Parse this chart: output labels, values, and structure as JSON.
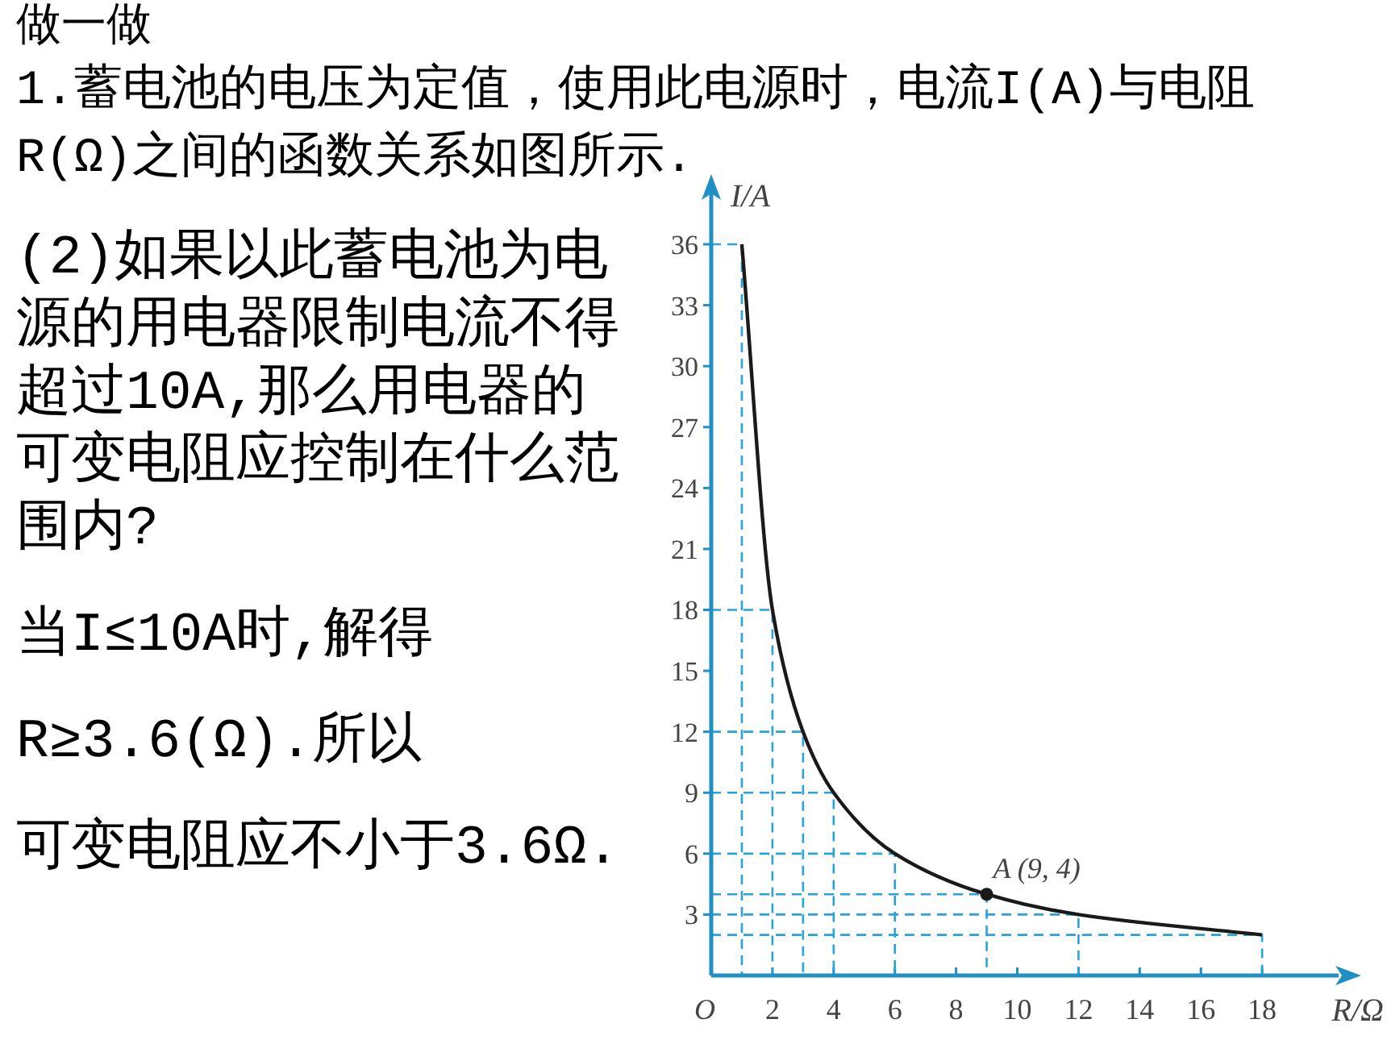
{
  "chart_data": {
    "type": "line",
    "title": "做一做",
    "subtitle": "1.蓄电池的电压为定值，使用此电源时，电流I(A)与电阻R(Ω)之间的函数关系如图所示.",
    "xlabel": "R/Ω",
    "ylabel": "I/A",
    "xlim": [
      0,
      20.5
    ],
    "ylim": [
      0,
      38.5
    ],
    "xticks": [
      {
        "value": 0,
        "label": "O"
      },
      2,
      4,
      6,
      8,
      10,
      12,
      14,
      16,
      18
    ],
    "yticks": [
      3,
      6,
      9,
      12,
      15,
      18,
      21,
      24,
      27,
      30,
      33,
      36
    ],
    "annotations": [
      {
        "text": "A (9, 4)",
        "x": 9,
        "y": 4
      },
      "(2)如果以此蓄电池为电源的用电器限制电流不得超过10A,那么用电器的可变电阻应控制在什么范围内?",
      "当I≤10A时,解得",
      "R≥3.6(Ω).所以",
      "可变电阻应不小于3.6Ω."
    ],
    "series": [
      {
        "color": "#1a1a1a",
        "marker": "none",
        "line_style": "solid",
        "x": [
          1,
          2,
          3,
          4,
          6,
          9,
          12,
          18
        ],
        "values": [
          36,
          18,
          12,
          9,
          6,
          4,
          3,
          2
        ]
      },
      {
        "type": "line",
        "color": "#29a3dc",
        "line_style": "dashed",
        "x": [
          0,
          1,
          1
        ],
        "values": [
          36,
          36,
          0
        ]
      },
      {
        "type": "line",
        "color": "#29a3dc",
        "line_style": "dashed",
        "x": [
          0,
          2,
          2
        ],
        "values": [
          18,
          18,
          0
        ]
      },
      {
        "type": "line",
        "color": "#29a3dc",
        "line_style": "dashed",
        "x": [
          0,
          3,
          3
        ],
        "values": [
          12,
          12,
          0
        ]
      },
      {
        "type": "line",
        "color": "#29a3dc",
        "line_style": "dashed",
        "x": [
          0,
          4,
          4
        ],
        "values": [
          9,
          9,
          0
        ]
      },
      {
        "type": "line",
        "color": "#29a3dc",
        "line_style": "dashed",
        "x": [
          0,
          6,
          6
        ],
        "values": [
          6,
          6,
          0
        ]
      },
      {
        "type": "line",
        "color": "#29a3dc",
        "line_style": "dashed",
        "x": [
          0,
          9,
          9
        ],
        "values": [
          4,
          4,
          0
        ]
      },
      {
        "type": "line",
        "color": "#29a3dc",
        "line_style": "dashed",
        "x": [
          0,
          12,
          12
        ],
        "values": [
          3,
          3,
          0
        ]
      },
      {
        "type": "line",
        "color": "#29a3dc",
        "line_style": "dashed",
        "x": [
          0,
          18,
          18
        ],
        "values": [
          2,
          2,
          0
        ]
      },
      {
        "type": "scatter",
        "color": "#1a1a1a",
        "marker": "circle",
        "x": [
          9
        ],
        "values": [
          4
        ]
      }
    ]
  }
}
